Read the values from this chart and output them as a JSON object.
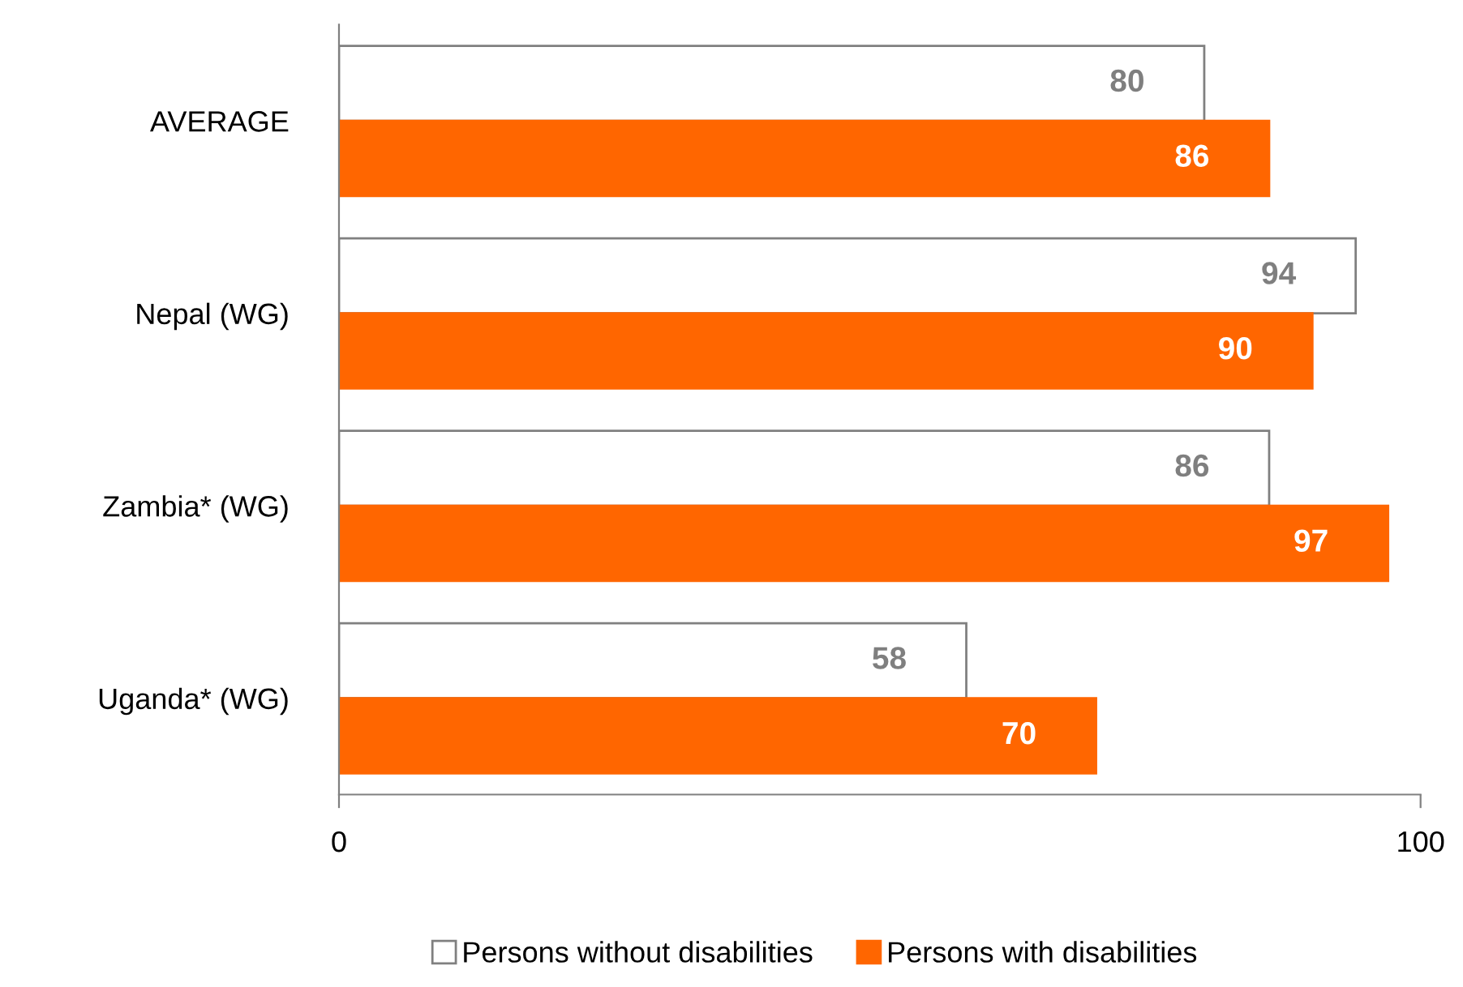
{
  "chart_data": {
    "type": "bar",
    "orientation": "horizontal",
    "categories": [
      "AVERAGE",
      "Nepal (WG)",
      "Zambia* (WG)",
      "Uganda* (WG)"
    ],
    "series": [
      {
        "name": "Persons without disabilities",
        "color": "#ffffff",
        "values": [
          80,
          94,
          86,
          58
        ]
      },
      {
        "name": "Persons with disabilities",
        "color": "#ff6600",
        "values": [
          86,
          90,
          97,
          70
        ]
      }
    ],
    "xlim": [
      0,
      100
    ],
    "xticks": [
      0,
      100
    ],
    "data_labels": true,
    "legend": "bottom",
    "grid": false
  }
}
